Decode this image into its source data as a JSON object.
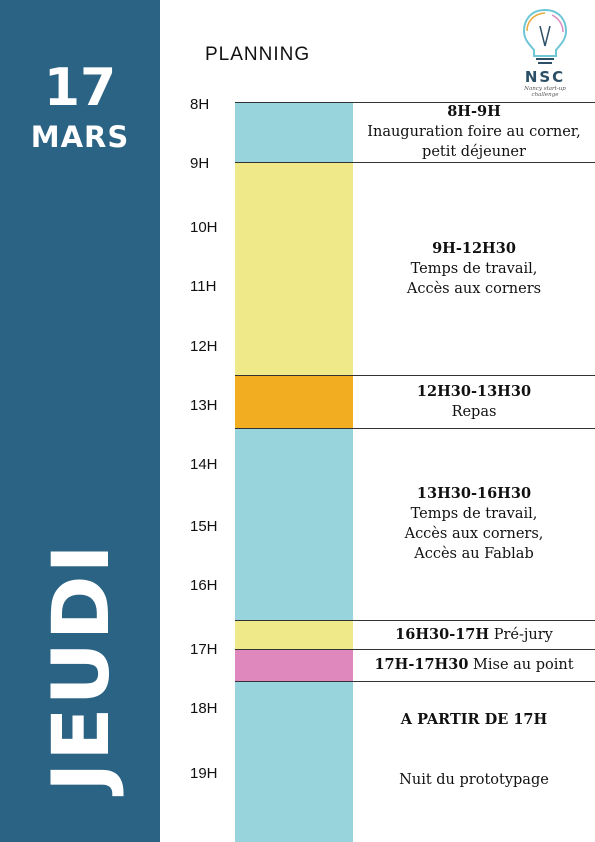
{
  "sidebar": {
    "day_number": "17",
    "month": "MARS",
    "weekday": "JEUDI"
  },
  "header": {
    "title": "PLANNING"
  },
  "logo": {
    "title": "NSC",
    "subtitle": "Nancy start-up challenge"
  },
  "hours": [
    "8H",
    "9H",
    "10H",
    "11H",
    "12H",
    "13H",
    "14H",
    "15H",
    "16H",
    "17H",
    "18H",
    "19H"
  ],
  "colors": {
    "sidebar": "#2b6384",
    "cyan": "#98d4dc",
    "yellow": "#f0e98a",
    "orange": "#f2ae20",
    "pink": "#df88bd"
  },
  "events": [
    {
      "time": "8H-9H",
      "lines": [
        "Inauguration foire au corner,",
        "petit déjeuner"
      ]
    },
    {
      "time": "9H-12H30",
      "lines": [
        "Temps de travail,",
        "Accès aux corners"
      ]
    },
    {
      "time": "12H30-13H30",
      "lines": [
        "Repas"
      ]
    },
    {
      "time": "13H30-16H30",
      "lines": [
        "Temps de travail,",
        "Accès aux corners,",
        "Accès au Fablab"
      ]
    },
    {
      "time": "16H30-17H",
      "inline": "Pré-jury"
    },
    {
      "time": "17H-17H30",
      "inline": "Mise au point"
    },
    {
      "time": "A PARTIR DE 17H",
      "lines": [
        "Nuit du prototypage"
      ]
    }
  ]
}
